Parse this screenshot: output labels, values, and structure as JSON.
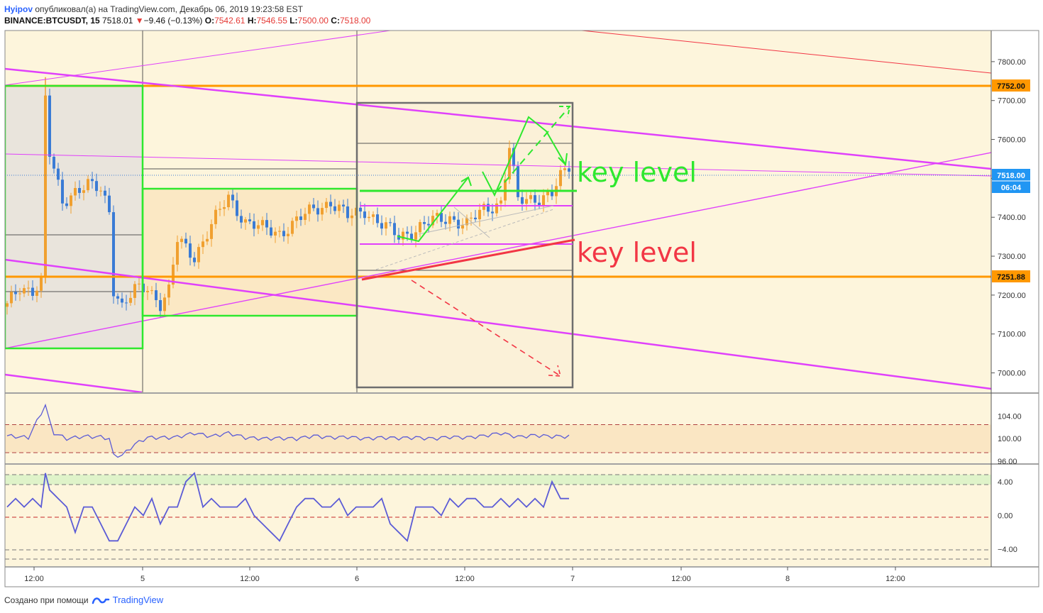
{
  "header": {
    "user": "Hyipov",
    "published": " опубликовал(а) на TradingView.com, Декабрь 06, 2019 19:23:58 EST",
    "symbol": "BINANCE:BTCUSDT, 15",
    "last": "7518.01",
    "arrow": "▼",
    "change": "−9.46 (−0.13%)",
    "o_label": "O:",
    "o": "7542.61",
    "h_label": "H:",
    "h": "7546.55",
    "l_label": "L:",
    "l": "7500.00",
    "c_label": "C:",
    "c": "7518.00"
  },
  "annotations": {
    "key_level_top": "key level",
    "key_level_bottom": "key level"
  },
  "price_badges": {
    "upper_level": "7752.00",
    "current": "7518.00",
    "countdown": "06:04",
    "lower_level": "7251.88"
  },
  "footer": {
    "created": "Создано при помощи",
    "brand": "TradingView"
  },
  "colors": {
    "bg": "#fdf5dc",
    "bull": "#f0a030",
    "bear": "#3a7bd5",
    "orange_line": "#ff9800",
    "magenta": "#e040fb",
    "green": "#2ee82e",
    "red": "#f23645",
    "osc": "#5b5bd6"
  },
  "chart_data": [
    {
      "type": "candlestick",
      "symbol": "BINANCE:BTCUSDT",
      "interval": "15",
      "x_ticks": [
        "12:00",
        "5",
        "12:00",
        "6",
        "12:00",
        "7",
        "12:00",
        "8",
        "12:00"
      ],
      "y_ticks": [
        7000,
        7100,
        7200,
        7300,
        7400,
        7500,
        7600,
        7700,
        7800
      ],
      "y_tick_labels": [
        "7000.00",
        "7100.00",
        "7200.00",
        "7300.00",
        "7400.00",
        "7500.00",
        "7600.00",
        "7700.00",
        "7800.00"
      ],
      "ylim": [
        6950,
        7880
      ],
      "price_path": [
        [
          0,
          7170
        ],
        [
          3,
          7220
        ],
        [
          6,
          7215
        ],
        [
          8,
          7230
        ],
        [
          9,
          7700
        ],
        [
          10,
          7560
        ],
        [
          11,
          7520
        ],
        [
          13,
          7440
        ],
        [
          16,
          7470
        ],
        [
          19,
          7480
        ],
        [
          22,
          7470
        ],
        [
          24,
          7420
        ],
        [
          25,
          7220
        ],
        [
          27,
          7170
        ],
        [
          30,
          7210
        ],
        [
          33,
          7220
        ],
        [
          36,
          7180
        ],
        [
          38,
          7210
        ],
        [
          40,
          7340
        ],
        [
          44,
          7300
        ],
        [
          48,
          7380
        ],
        [
          52,
          7450
        ],
        [
          56,
          7390
        ],
        [
          60,
          7370
        ],
        [
          64,
          7360
        ],
        [
          68,
          7390
        ],
        [
          72,
          7420
        ],
        [
          76,
          7440
        ],
        [
          80,
          7400
        ],
        [
          84,
          7420
        ],
        [
          88,
          7380
        ],
        [
          92,
          7350
        ],
        [
          96,
          7370
        ],
        [
          100,
          7390
        ],
        [
          104,
          7400
        ],
        [
          108,
          7380
        ],
        [
          112,
          7420
        ],
        [
          116,
          7440
        ],
        [
          118,
          7580
        ],
        [
          120,
          7440
        ],
        [
          124,
          7450
        ],
        [
          128,
          7460
        ],
        [
          130,
          7500
        ],
        [
          132,
          7530
        ]
      ],
      "horizontal_levels": [
        7752.0,
        7251.88
      ],
      "last_price": 7518.0
    },
    {
      "type": "line",
      "y_ticks": [
        96,
        100,
        104
      ],
      "y_tick_labels": [
        "96.00",
        "100.00",
        "104.00"
      ],
      "ylim": [
        95.6,
        108
      ],
      "levels": [
        97.5,
        102.5
      ],
      "path": [
        [
          0,
          100.5
        ],
        [
          5,
          100.2
        ],
        [
          9,
          106
        ],
        [
          10,
          103
        ],
        [
          11,
          101
        ],
        [
          14,
          100
        ],
        [
          18,
          100.4
        ],
        [
          22,
          100.3
        ],
        [
          24,
          100
        ],
        [
          25,
          97
        ],
        [
          27,
          97
        ],
        [
          30,
          99
        ],
        [
          33,
          100.2
        ],
        [
          38,
          100.2
        ],
        [
          40,
          100.3
        ],
        [
          44,
          101
        ],
        [
          48,
          100.4
        ],
        [
          52,
          101
        ],
        [
          56,
          100.2
        ],
        [
          60,
          100
        ],
        [
          64,
          100.1
        ],
        [
          68,
          100
        ],
        [
          72,
          100.5
        ],
        [
          76,
          100.2
        ],
        [
          80,
          100.3
        ],
        [
          84,
          100
        ],
        [
          88,
          100.2
        ],
        [
          92,
          100.1
        ],
        [
          96,
          100.2
        ],
        [
          100,
          100
        ],
        [
          104,
          100.3
        ],
        [
          108,
          100.2
        ],
        [
          112,
          100.5
        ],
        [
          116,
          101
        ],
        [
          120,
          100.3
        ],
        [
          124,
          100.6
        ],
        [
          128,
          100.4
        ],
        [
          132,
          100.4
        ]
      ]
    },
    {
      "type": "line",
      "y_ticks": [
        -4,
        0,
        4
      ],
      "y_tick_labels": [
        "−4.00",
        "0.00",
        "4.00"
      ],
      "ylim": [
        -6,
        6
      ],
      "levels": [
        -4,
        0,
        4
      ],
      "path": [
        [
          0,
          1
        ],
        [
          2,
          2
        ],
        [
          4,
          1
        ],
        [
          6,
          2
        ],
        [
          8,
          1
        ],
        [
          9,
          5
        ],
        [
          10,
          3
        ],
        [
          12,
          2
        ],
        [
          14,
          1
        ],
        [
          16,
          -2
        ],
        [
          18,
          1
        ],
        [
          20,
          1
        ],
        [
          22,
          -1
        ],
        [
          24,
          -3
        ],
        [
          26,
          -3
        ],
        [
          28,
          -1
        ],
        [
          30,
          1
        ],
        [
          32,
          0
        ],
        [
          34,
          2
        ],
        [
          36,
          -1
        ],
        [
          38,
          1
        ],
        [
          40,
          1
        ],
        [
          42,
          4
        ],
        [
          44,
          5
        ],
        [
          46,
          1
        ],
        [
          48,
          2
        ],
        [
          50,
          1
        ],
        [
          52,
          1
        ],
        [
          54,
          1
        ],
        [
          56,
          2
        ],
        [
          58,
          0
        ],
        [
          60,
          -1
        ],
        [
          62,
          -2
        ],
        [
          64,
          -3
        ],
        [
          66,
          -1
        ],
        [
          68,
          1
        ],
        [
          70,
          2
        ],
        [
          72,
          2
        ],
        [
          74,
          1
        ],
        [
          76,
          1
        ],
        [
          78,
          2
        ],
        [
          80,
          0
        ],
        [
          82,
          1
        ],
        [
          84,
          1
        ],
        [
          86,
          1
        ],
        [
          88,
          2
        ],
        [
          90,
          -1
        ],
        [
          92,
          -2
        ],
        [
          94,
          -3
        ],
        [
          96,
          1
        ],
        [
          98,
          1
        ],
        [
          100,
          1
        ],
        [
          102,
          0
        ],
        [
          104,
          2
        ],
        [
          106,
          1
        ],
        [
          108,
          2
        ],
        [
          110,
          2
        ],
        [
          112,
          1
        ],
        [
          114,
          1
        ],
        [
          116,
          2
        ],
        [
          118,
          1
        ],
        [
          120,
          2
        ],
        [
          122,
          1
        ],
        [
          124,
          2
        ],
        [
          126,
          1
        ],
        [
          128,
          4
        ],
        [
          130,
          2
        ],
        [
          132,
          2
        ]
      ]
    }
  ]
}
